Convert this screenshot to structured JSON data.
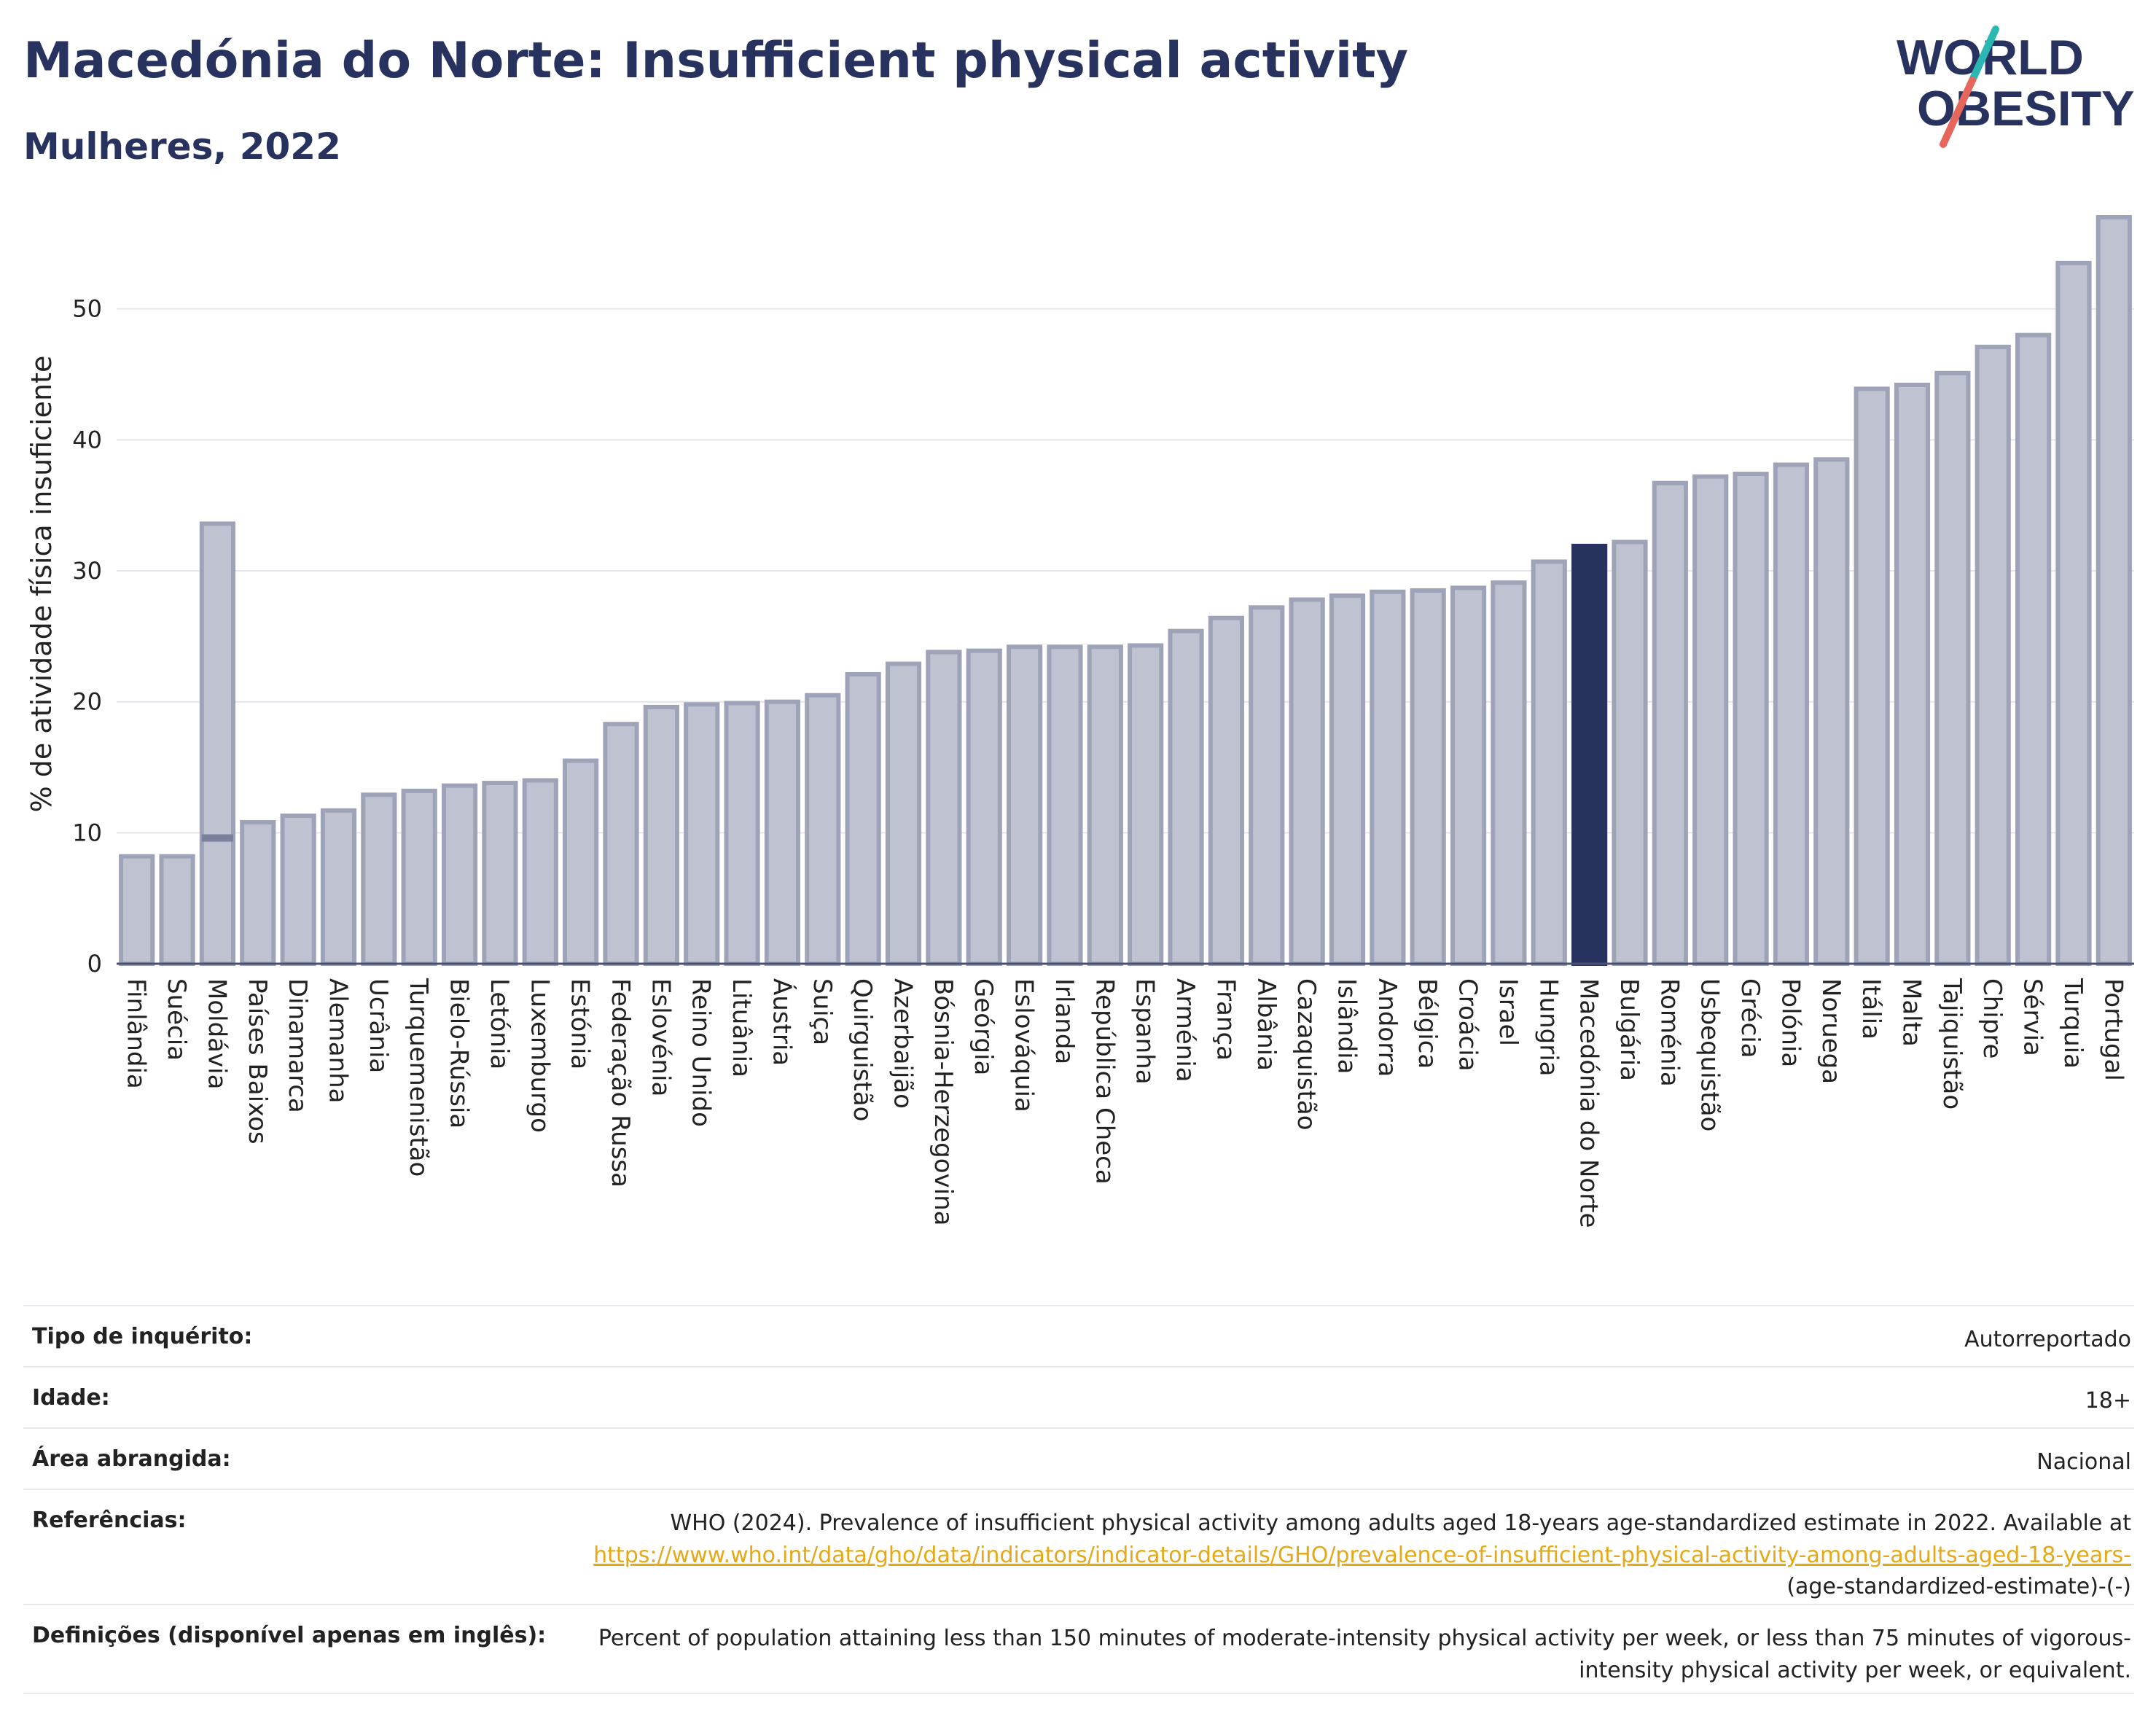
{
  "header": {
    "title": "Macedónia do Norte: Insufficient physical activity",
    "subtitle": "Mulheres, 2022"
  },
  "logo": {
    "line1": "WORLD",
    "line2": "OBESITY"
  },
  "colors": {
    "bar": "#bfc3d1",
    "bar_border": "#9ea3b8",
    "highlight": "#27325f",
    "grid": "#e3e5ec",
    "title": "#27325f"
  },
  "chart_data": {
    "type": "bar",
    "ylabel": "% de atividade física insuficiente",
    "xlabel": "",
    "ylim": [
      0,
      58
    ],
    "yticks": [
      0,
      10,
      20,
      30,
      40,
      50
    ],
    "highlight": "Macedónia do Norte",
    "grid": "horizontal",
    "categories": [
      "Finlândia",
      "Suécia",
      "Moldávia",
      "Países Baixos",
      "Dinamarca",
      "Alemanha",
      "Ucrânia",
      "Turquemenistão",
      "Bielo-Rússia",
      "Letónia",
      "Luxemburgo",
      "Estónia",
      "Federação Russa",
      "Eslovénia",
      "Reino Unido",
      "Lituânia",
      "Áustria",
      "Suiça",
      "Quirguistão",
      "Azerbaijão",
      "Bósnia-Herzegovina",
      "Geórgia",
      "Eslováquia",
      "Irlanda",
      "República Checa",
      "Espanha",
      "Arménia",
      "França",
      "Albânia",
      "Cazaquistão",
      "Islândia",
      "Andorra",
      "Bélgica",
      "Croácia",
      "Israel",
      "Hungria",
      "Macedónia do Norte",
      "Bulgária",
      "Roménia",
      "Usbequistão",
      "Grécia",
      "Polónia",
      "Noruega",
      "Itália",
      "Malta",
      "Tajiquistão",
      "Chipre",
      "Sérvia",
      "Turquia",
      "Portugal"
    ],
    "values": [
      8.2,
      8.2,
      33.6,
      10.8,
      11.3,
      11.7,
      12.9,
      13.2,
      13.6,
      13.8,
      14.0,
      15.5,
      18.3,
      19.6,
      19.8,
      19.9,
      20.0,
      20.5,
      22.1,
      22.9,
      23.8,
      23.9,
      24.2,
      24.2,
      24.2,
      24.3,
      25.4,
      26.4,
      27.2,
      27.8,
      28.1,
      28.4,
      28.5,
      28.7,
      29.1,
      30.7,
      31.9,
      32.2,
      36.7,
      37.2,
      37.4,
      38.1,
      38.5,
      43.9,
      44.2,
      45.1,
      47.1,
      48.0,
      53.5,
      57.0
    ],
    "inner_marker": {
      "category": "Moldávia",
      "value": 9.6
    }
  },
  "meta": {
    "rows": [
      {
        "label": "Tipo de inquérito:",
        "value": "Autorreportado"
      },
      {
        "label": "Idade:",
        "value": "18+"
      },
      {
        "label": "Área abrangida:",
        "value": "Nacional"
      }
    ],
    "references": {
      "label": "Referências:",
      "text": "WHO (2024). Prevalence of insufficient physical activity among adults aged 18-years age-standardized estimate in 2022. Available at",
      "link": "https://www.who.int/data/gho/data/indicators/indicator-details/GHO/prevalence-of-insufficient-physical-activity-among-adults-aged-18-years-",
      "suffix": "(age-standardized-estimate)-(-)"
    },
    "definitions": {
      "label": "Definições (disponível apenas em inglês):",
      "text": "Percent of population attaining less than 150 minutes of moderate-intensity physical activity per week, or less than 75 minutes of vigorous-intensity physical activity per week, or equivalent."
    }
  }
}
